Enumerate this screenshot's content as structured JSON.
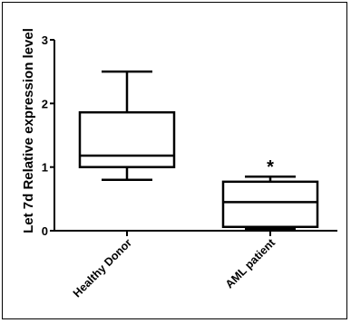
{
  "chart_data": {
    "type": "boxplot",
    "ylabel": "Let 7d Relative expression level",
    "ylim": [
      0,
      3
    ],
    "yticks": [
      "0",
      "1",
      "2",
      "3"
    ],
    "categories": [
      "Healthy Donor",
      "AML patient"
    ],
    "boxes": [
      {
        "name": "Healthy Donor",
        "min": 0.8,
        "q1": 1.0,
        "median": 1.18,
        "q3": 1.86,
        "max": 2.5,
        "annotation": ""
      },
      {
        "name": "AML patient",
        "min": 0.03,
        "q1": 0.06,
        "median": 0.45,
        "q3": 0.77,
        "max": 0.85,
        "annotation": "*"
      }
    ],
    "grid": false,
    "legend": "none",
    "colors": {
      "stroke": "#000000",
      "fill": "#ffffff"
    }
  }
}
